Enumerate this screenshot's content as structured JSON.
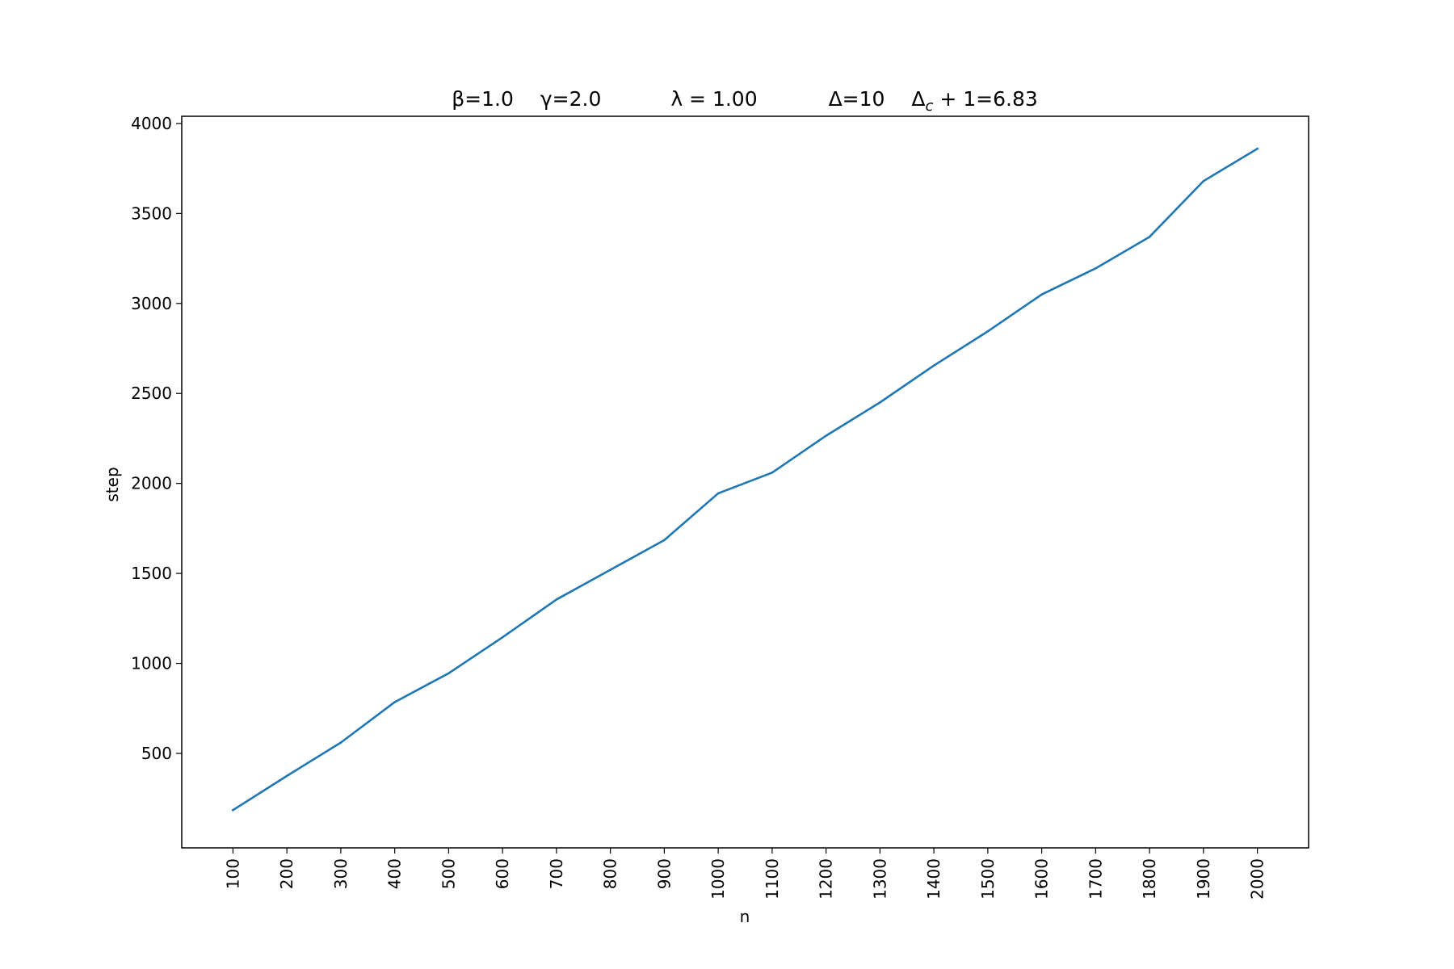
{
  "chart_data": {
    "type": "line",
    "title_parts": {
      "beta": "β=1.0",
      "gamma": "γ=2.0",
      "lambda": "λ = 1.00",
      "delta": "Δ=10",
      "delta_c": "Δ",
      "delta_c_sub": "c",
      "delta_c_value": " + 1=6.83"
    },
    "xlabel": "n",
    "ylabel": "step",
    "x": [
      100,
      200,
      300,
      400,
      500,
      600,
      700,
      800,
      900,
      1000,
      1100,
      1200,
      1300,
      1400,
      1500,
      1600,
      1700,
      1800,
      1900,
      2000
    ],
    "x_tick_labels": [
      "100",
      "200",
      "300",
      "400",
      "500",
      "600",
      "700",
      "800",
      "900",
      "1000",
      "1100",
      "1200",
      "1300",
      "1400",
      "1500",
      "1600",
      "1700",
      "1800",
      "1900",
      "2000"
    ],
    "series": [
      {
        "values": [
          185,
          375,
          560,
          785,
          945,
          1145,
          1355,
          1520,
          1685,
          1945,
          2060,
          2265,
          2450,
          2655,
          2845,
          3050,
          3195,
          3370,
          3680,
          3860
        ],
        "color": "#1f77b4"
      }
    ],
    "y_ticks": [
      500,
      1000,
      1500,
      2000,
      2500,
      3000,
      3500,
      4000
    ],
    "y_tick_labels": [
      "500",
      "1000",
      "1500",
      "2000",
      "2500",
      "3000",
      "3500",
      "4000"
    ],
    "xlim": [
      5,
      2095
    ],
    "ylim": [
      -25,
      4040
    ],
    "grid": false,
    "legend": "none"
  }
}
